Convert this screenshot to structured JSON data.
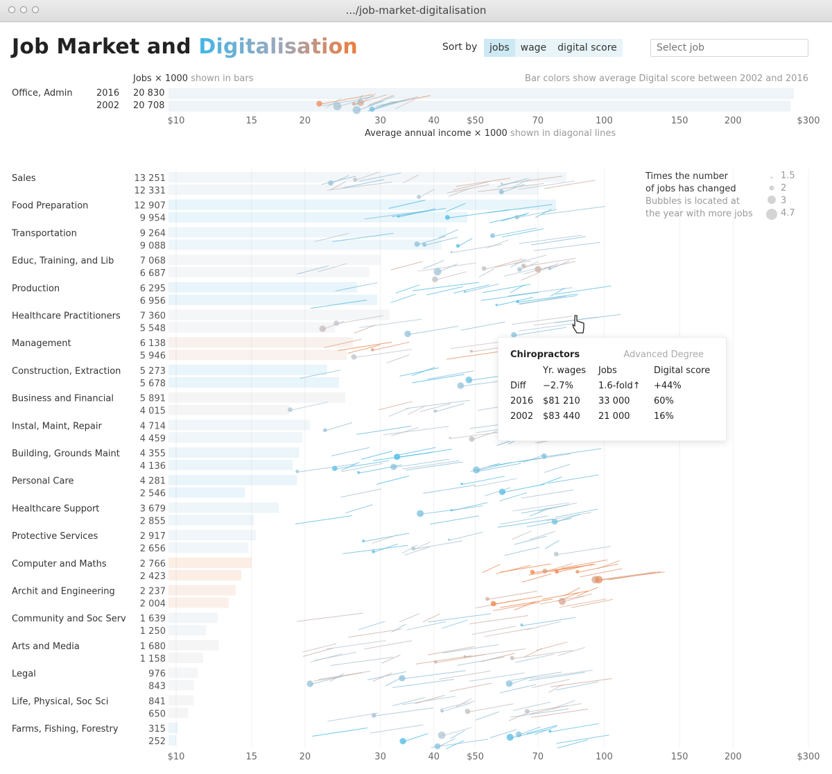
{
  "window": {
    "url": ".../job-market-digitalisation"
  },
  "header": {
    "title_plain": "Job Market and ",
    "title_highlight": "Digitalisation",
    "sort_label": "Sort by",
    "sort_options": [
      "jobs",
      "wage",
      "digital score"
    ],
    "sort_active": "jobs",
    "select_placeholder": "Select job"
  },
  "explanations": {
    "jobs_axis": "Jobs",
    "jobs_axis_unit": "× 1000",
    "jobs_axis_note": "shown in bars",
    "color_note": "Bar colors show average Digital score between 2002 and 2016",
    "income_axis": "Average annual income",
    "income_axis_unit": "× 1000",
    "income_axis_note": "shown in diagonal lines"
  },
  "colors": {
    "low_digital": "#41b6e6",
    "high_digital": "#f07c3a",
    "neutral": "#b9c1cc"
  },
  "legend": {
    "line1": "Times the number",
    "line2": "of jobs has changed",
    "line3": "Bubbles is located at",
    "line4": "the year with more jobs",
    "sizes": [
      "1.5",
      "2",
      "3",
      "4.7"
    ]
  },
  "tooltip": {
    "job": "Chiropractors",
    "category": "Advanced Degree",
    "headers": [
      "Yr. wages",
      "Jobs",
      "Digital score"
    ],
    "rows": [
      {
        "label": "Diff",
        "wage": "−2.7%",
        "jobs": "1.6-fold↑",
        "score": "+44%"
      },
      {
        "label": "2016",
        "wage": "$81 210",
        "jobs": "33 000",
        "score": "60%"
      },
      {
        "label": "2002",
        "wage": "$83 440",
        "jobs": "21 000",
        "score": "16%"
      }
    ]
  },
  "chart_data": {
    "type": "bar",
    "x_axis_ticks": [
      "$10",
      "15",
      "20",
      "30",
      "40",
      "$50",
      "70",
      "100",
      "150",
      "200",
      "$300"
    ],
    "x_axis_scale": "log",
    "x_axis_range": [
      10,
      300
    ],
    "summary": {
      "name": "Office, Admin",
      "year1": "2016",
      "jobs1": "20 830",
      "year2": "2002",
      "jobs2": "20 708"
    },
    "categories": [
      {
        "name": "Sales",
        "jobs2016": "13 251",
        "jobs2002": "12 331",
        "v2016": 13251,
        "v2002": 12331,
        "digital": 0.45
      },
      {
        "name": "Food Preparation",
        "jobs2016": "12 907",
        "jobs2002": "9 954",
        "v2016": 12907,
        "v2002": 9954,
        "digital": 0.1
      },
      {
        "name": "Transportation",
        "jobs2016": "9 264",
        "jobs2002": "9 088",
        "v2016": 9264,
        "v2002": 9088,
        "digital": 0.25
      },
      {
        "name": "Educ, Training, and Lib",
        "jobs2016": "7 068",
        "jobs2002": "6 687",
        "v2016": 7068,
        "v2002": 6687,
        "digital": 0.5
      },
      {
        "name": "Production",
        "jobs2016": "6 295",
        "jobs2002": "6 956",
        "v2016": 6295,
        "v2002": 6956,
        "digital": 0.15
      },
      {
        "name": "Healthcare Practitioners",
        "jobs2016": "7 360",
        "jobs2002": "5 548",
        "v2016": 7360,
        "v2002": 5548,
        "digital": 0.5
      },
      {
        "name": "Management",
        "jobs2016": "6 138",
        "jobs2002": "5 946",
        "v2016": 6138,
        "v2002": 5946,
        "digital": 0.75
      },
      {
        "name": "Construction, Extraction",
        "jobs2016": "5 273",
        "jobs2002": "5 678",
        "v2016": 5273,
        "v2002": 5678,
        "digital": 0.1
      },
      {
        "name": "Business and Financial",
        "jobs2016": "5 891",
        "jobs2002": "4 015",
        "v2016": 5891,
        "v2002": 4015,
        "digital": 0.55
      },
      {
        "name": "Instal, Maint, Repair",
        "jobs2016": "4 714",
        "jobs2002": "4 459",
        "v2016": 4714,
        "v2002": 4459,
        "digital": 0.35
      },
      {
        "name": "Building, Grounds Maint",
        "jobs2016": "4 355",
        "jobs2002": "4 136",
        "v2016": 4355,
        "v2002": 4136,
        "digital": 0.2
      },
      {
        "name": "Personal Care",
        "jobs2016": "4 281",
        "jobs2002": "2 546",
        "v2016": 4281,
        "v2002": 2546,
        "digital": 0.15
      },
      {
        "name": "Healthcare Support",
        "jobs2016": "3 679",
        "jobs2002": "2 855",
        "v2016": 3679,
        "v2002": 2855,
        "digital": 0.3
      },
      {
        "name": "Protective Services",
        "jobs2016": "2 917",
        "jobs2002": "2 656",
        "v2016": 2917,
        "v2002": 2656,
        "digital": 0.35
      },
      {
        "name": "Computer and Maths",
        "jobs2016": "2 766",
        "jobs2002": "2 423",
        "v2016": 2766,
        "v2002": 2423,
        "digital": 0.95
      },
      {
        "name": "Archit and Engineering",
        "jobs2016": "2 237",
        "jobs2002": "2 004",
        "v2016": 2237,
        "v2002": 2004,
        "digital": 0.85
      },
      {
        "name": "Community and Soc Serv",
        "jobs2016": "1 639",
        "jobs2002": "1 250",
        "v2016": 1639,
        "v2002": 1250,
        "digital": 0.45
      },
      {
        "name": "Arts and Media",
        "jobs2016": "1 680",
        "jobs2002": "1 158",
        "v2016": 1680,
        "v2002": 1158,
        "digital": 0.55
      },
      {
        "name": "Legal",
        "jobs2016": "976",
        "jobs2002": "843",
        "v2016": 976,
        "v2002": 843,
        "digital": 0.5
      },
      {
        "name": "Life, Physical, Soc Sci",
        "jobs2016": "841",
        "jobs2002": "650",
        "v2016": 841,
        "v2002": 650,
        "digital": 0.55
      },
      {
        "name": "Farms, Fishing, Forestry",
        "jobs2016": "315",
        "jobs2002": "252",
        "v2016": 315,
        "v2002": 252,
        "digital": 0.2
      }
    ]
  }
}
